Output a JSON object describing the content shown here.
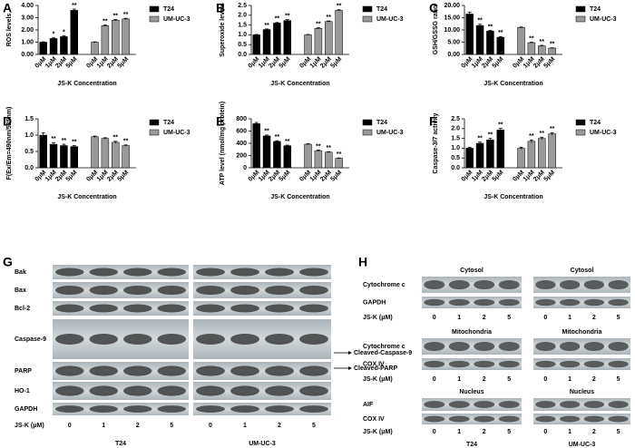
{
  "chart_data": [
    {
      "type": "bar",
      "panel": "A",
      "y_label": "ROS levels",
      "x_label": "JS-K Concentration",
      "categories": [
        "0μM",
        "1μM",
        "2μM",
        "5μM"
      ],
      "series": [
        {
          "name": "T24",
          "color": "#000000",
          "values": [
            1.0,
            1.3,
            1.45,
            3.6
          ],
          "errors": [
            0.03,
            0.05,
            0.06,
            0.1
          ],
          "significance": [
            null,
            "*",
            "*",
            "**"
          ]
        },
        {
          "name": "UM-UC-3",
          "color": "#999999",
          "values": [
            1.0,
            2.35,
            2.8,
            2.9
          ],
          "errors": [
            0.03,
            0.06,
            0.05,
            0.05
          ],
          "significance": [
            null,
            "**",
            "**",
            "**"
          ]
        }
      ],
      "ylim": [
        0,
        4
      ],
      "yticks": [
        {
          "value": 0,
          "label": "0.00"
        },
        {
          "value": 1,
          "label": "1.00"
        },
        {
          "value": 2,
          "label": "2.00"
        },
        {
          "value": 3,
          "label": "3.00"
        },
        {
          "value": 4,
          "label": "4.00"
        }
      ]
    },
    {
      "type": "bar",
      "panel": "B",
      "y_label": "Superoxide levels",
      "x_label": "JS-K Concentration",
      "categories": [
        "0μM",
        "1μM",
        "2μM",
        "5μM"
      ],
      "series": [
        {
          "name": "T24",
          "color": "#000000",
          "values": [
            1.0,
            1.27,
            1.6,
            1.73
          ],
          "errors": [
            0.02,
            0.03,
            0.03,
            0.05
          ],
          "significance": [
            null,
            "**",
            "**",
            "**"
          ]
        },
        {
          "name": "UM-UC-3",
          "color": "#999999",
          "values": [
            1.0,
            1.33,
            1.68,
            2.25
          ],
          "errors": [
            0.02,
            0.03,
            0.03,
            0.03
          ],
          "significance": [
            null,
            "**",
            "**",
            "**"
          ]
        }
      ],
      "ylim": [
        0,
        2.5
      ],
      "yticks": [
        {
          "value": 0,
          "label": "0.0"
        },
        0.5,
        {
          "value": 1,
          "label": "1.0"
        },
        1.5,
        {
          "value": 2,
          "label": "2.0"
        },
        2.5
      ]
    },
    {
      "type": "bar",
      "panel": "C",
      "y_label": "GSH/GSSG ratio",
      "x_label": "JS-K Concentration",
      "categories": [
        "0μM",
        "1μM",
        "2μM",
        "5μM"
      ],
      "series": [
        {
          "name": "T24",
          "color": "#000000",
          "values": [
            16.5,
            11.8,
            9.5,
            7.0
          ],
          "errors": [
            0.8,
            0.5,
            0.3,
            0.3
          ],
          "significance": [
            null,
            "**",
            "**",
            "**"
          ]
        },
        {
          "name": "UM-UC-3",
          "color": "#999999",
          "values": [
            11.0,
            4.8,
            3.5,
            2.6
          ],
          "errors": [
            0.2,
            0.2,
            0.2,
            0.1
          ],
          "significance": [
            null,
            "**",
            "**",
            "**"
          ]
        }
      ],
      "ylim": [
        0,
        20
      ],
      "yticks": [
        {
          "value": 0,
          "label": "0.00"
        },
        {
          "value": 5,
          "label": "5.00"
        },
        {
          "value": 10,
          "label": "10.00"
        },
        {
          "value": 15,
          "label": "15.00"
        },
        {
          "value": 20,
          "label": "20.00"
        }
      ]
    },
    {
      "type": "bar",
      "panel": "D",
      "y_label": "F(Ex/Em=490nm/525nm)",
      "x_label": "JS-K Concentration",
      "categories": [
        "0μM",
        "1μM",
        "2μM",
        "5μM"
      ],
      "series": [
        {
          "name": "T24",
          "color": "#000000",
          "values": [
            1.0,
            0.72,
            0.68,
            0.65
          ],
          "errors": [
            0.07,
            0.05,
            0.04,
            0.03
          ],
          "significance": [
            null,
            "**",
            "**",
            "**"
          ]
        },
        {
          "name": "UM-UC-3",
          "color": "#999999",
          "values": [
            0.95,
            0.9,
            0.78,
            0.68
          ],
          "errors": [
            0.02,
            0.02,
            0.03,
            0.02
          ],
          "significance": [
            null,
            null,
            "**",
            "**"
          ]
        }
      ],
      "ylim": [
        0,
        1.5
      ],
      "yticks": [
        {
          "value": 0,
          "label": "0.0"
        },
        0.5,
        {
          "value": 1,
          "label": "1.0"
        },
        1.5
      ]
    },
    {
      "type": "bar",
      "panel": "E",
      "y_label": "ATP level (nmol/mg protein)",
      "x_label": "JS-K Concentration",
      "categories": [
        "0μM",
        "1μM",
        "2μM",
        "5μM"
      ],
      "series": [
        {
          "name": "T24",
          "color": "#000000",
          "values": [
            720,
            520,
            430,
            360
          ],
          "errors": [
            20,
            15,
            12,
            10
          ],
          "significance": [
            null,
            "**",
            "**",
            "**"
          ]
        },
        {
          "name": "UM-UC-3",
          "color": "#999999",
          "values": [
            385,
            280,
            255,
            155
          ],
          "errors": [
            8,
            10,
            8,
            6
          ],
          "significance": [
            null,
            "**",
            "**",
            "**"
          ]
        }
      ],
      "ylim": [
        0,
        800
      ],
      "yticks": [
        0,
        200,
        400,
        600,
        800
      ]
    },
    {
      "type": "bar",
      "panel": "F",
      "y_label": "Caspase-3/7 activity",
      "x_label": "JS-K Concentration",
      "categories": [
        "0μM",
        "1μM",
        "2μM",
        "5μM"
      ],
      "series": [
        {
          "name": "T24",
          "color": "#000000",
          "values": [
            1.0,
            1.25,
            1.42,
            1.93
          ],
          "errors": [
            0.05,
            0.06,
            0.08,
            0.08
          ],
          "significance": [
            null,
            "**",
            "**",
            "**"
          ]
        },
        {
          "name": "UM-UC-3",
          "color": "#999999",
          "values": [
            1.0,
            1.35,
            1.5,
            1.73
          ],
          "errors": [
            0.05,
            0.07,
            0.06,
            0.06
          ],
          "significance": [
            null,
            "**",
            "**",
            "**"
          ]
        }
      ],
      "ylim": [
        0,
        2.5
      ],
      "yticks": [
        {
          "value": 0,
          "label": "0.0"
        },
        0.5,
        {
          "value": 1,
          "label": "1.0"
        },
        1.5,
        {
          "value": 2,
          "label": "2.0"
        },
        2.5
      ]
    }
  ],
  "blot_g": {
    "panel": "G",
    "rows": [
      "Bak",
      "Bax",
      "Bcl-2",
      "Caspase-9",
      "PARP",
      "HO-1",
      "GAPDH"
    ],
    "conc_label": "JS-K (μM)",
    "lanes": [
      "0",
      "1",
      "2",
      "5"
    ],
    "groups": [
      "T24",
      "UM-UC-3"
    ],
    "arrows": [
      "Cleaved-Caspase-9",
      "Cleaved-PARP"
    ]
  },
  "blot_h": {
    "panel": "H",
    "sections": [
      {
        "title": "Cytosol",
        "rows": [
          "Cytochrome c",
          "GAPDH"
        ]
      },
      {
        "title": "Mitochondria",
        "rows": [
          "Cytochrome c",
          "COX IV"
        ]
      },
      {
        "title": "Nucleus",
        "rows": [
          "AIF",
          "COX IV"
        ]
      }
    ],
    "conc_label": "JS-K (μM)",
    "lanes": [
      "0",
      "1",
      "2",
      "5"
    ],
    "groups": [
      "T24",
      "UM-UC-3"
    ]
  }
}
